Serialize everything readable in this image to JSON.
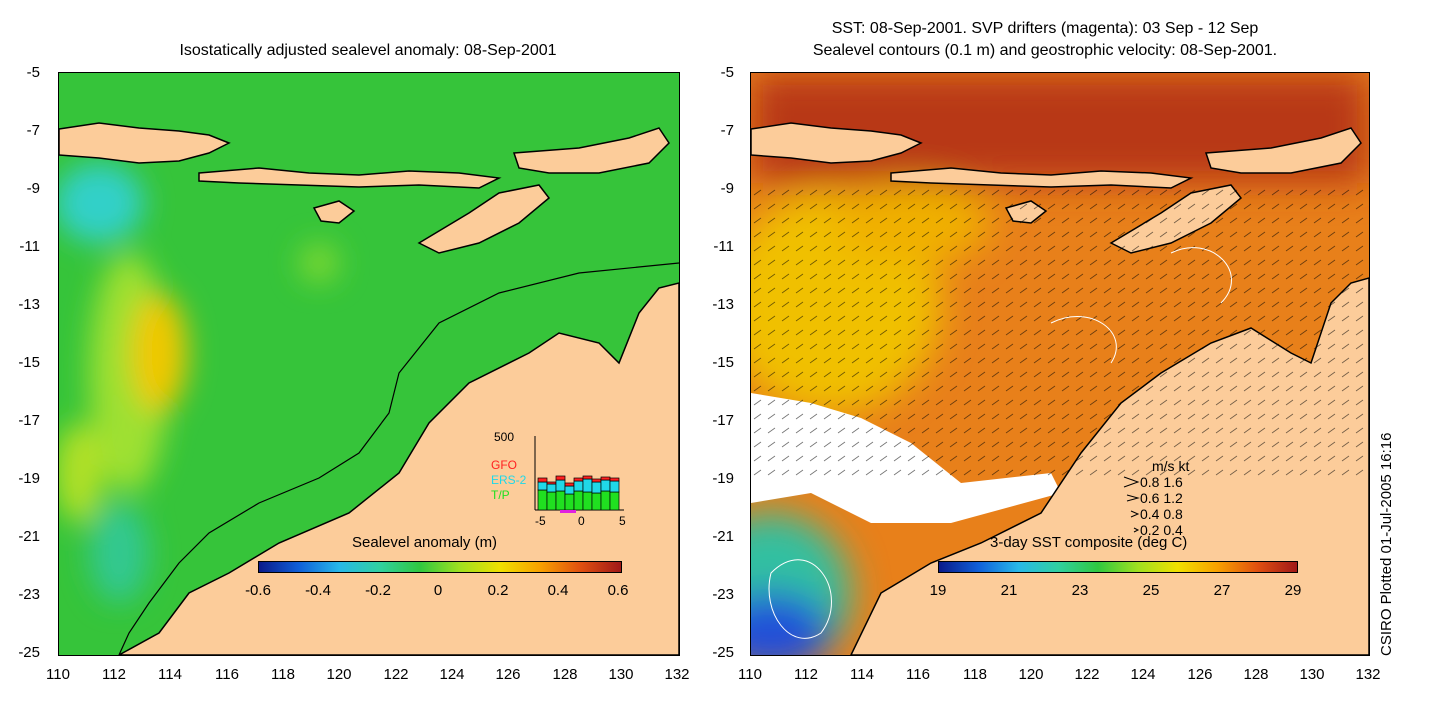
{
  "left_panel": {
    "title": "Isostatically adjusted sealevel anomaly: 08-Sep-2001",
    "colorbar_title": "Sealevel anomaly (m)",
    "colorbar_ticks": [
      "-0.6",
      "-0.4",
      "-0.2",
      "0",
      "0.2",
      "0.4",
      "0.6"
    ],
    "inset": {
      "ymax_label": "500",
      "legend": [
        {
          "name": "GFO",
          "color": "#ff2020"
        },
        {
          "name": "ERS-2",
          "color": "#20d8e8"
        },
        {
          "name": "T/P",
          "color": "#20e020"
        }
      ],
      "x_ticks": [
        "-5",
        "0",
        "5"
      ]
    }
  },
  "right_panel": {
    "title_line1": "SST: 08-Sep-2001. SVP drifters (magenta): 03 Sep - 12 Sep",
    "title_line2": "Sealevel contours (0.1 m) and geostrophic velocity: 08-Sep-2001.",
    "colorbar_title": "3-day SST composite (deg C)",
    "colorbar_ticks": [
      "19",
      "21",
      "23",
      "25",
      "27",
      "29"
    ],
    "velocity_legend": {
      "header": "m/s  kt",
      "rows": [
        "0.8  1.6",
        "0.6  1.2",
        "0.4  0.8",
        "0.2  0.4"
      ]
    }
  },
  "axes": {
    "y_ticks": [
      "-5",
      "-7",
      "-9",
      "-11",
      "-13",
      "-15",
      "-17",
      "-19",
      "-21",
      "-23",
      "-25"
    ],
    "x_ticks": [
      "110",
      "112",
      "114",
      "116",
      "118",
      "120",
      "122",
      "124",
      "126",
      "128",
      "130",
      "132"
    ]
  },
  "credit": "CSIRO Plotted 01-Jul-2005 16:16",
  "colors": {
    "land": "#fccc9a",
    "sea_left": "#36c43a",
    "sst_warm": "#e8801a",
    "sst_hot": "#b83818",
    "sst_cool": "#f0c000",
    "no_data": "#ffffff"
  }
}
